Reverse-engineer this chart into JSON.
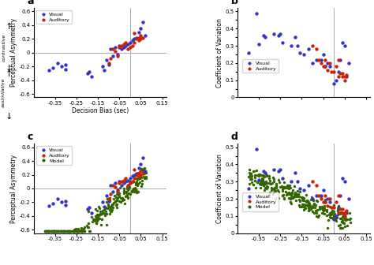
{
  "title": "Decision Bias (sec)",
  "panel_labels": [
    "a",
    "b",
    "c",
    "d"
  ],
  "xlim": [
    -0.45,
    0.17
  ],
  "xticks": [
    -0.35,
    -0.25,
    -0.15,
    -0.05,
    0.05,
    0.15
  ],
  "color_visual": "#3333CC",
  "color_auditory": "#CC2200",
  "color_model": "#336600",
  "background": "#FFFFFF",
  "seed": 42
}
